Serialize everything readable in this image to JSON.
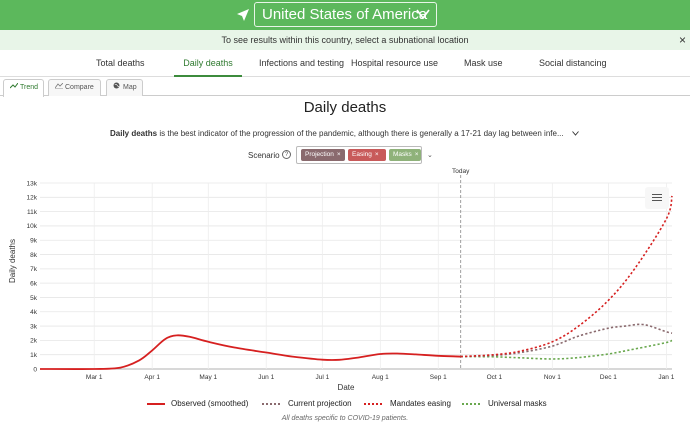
{
  "header": {
    "country": "United States of America",
    "location_icon": "location-arrow-icon",
    "chevron_icon": "chevron-down-icon"
  },
  "notice": {
    "text": "To see results within this country, select a subnational location",
    "close": "×"
  },
  "nav_tabs": [
    {
      "label": "Total deaths",
      "active": false
    },
    {
      "label": "Daily deaths",
      "active": true
    },
    {
      "label": "Infections and testing",
      "active": false
    },
    {
      "label": "Hospital resource use",
      "active": false
    },
    {
      "label": "Mask use",
      "active": false
    },
    {
      "label": "Social distancing",
      "active": false
    }
  ],
  "view_tabs": [
    {
      "label": "Trend",
      "icon": "trend-icon",
      "active": true
    },
    {
      "label": "Compare",
      "icon": "compare-icon",
      "active": false
    },
    {
      "label": "Map",
      "icon": "globe-icon",
      "active": false
    }
  ],
  "page_title": "Daily deaths",
  "description": {
    "bold": "Daily deaths",
    "rest": " is the best indicator of the progression of the pandemic, although there is generally a 17-21 day lag between infe..."
  },
  "scenario": {
    "label": "Scenario",
    "chips": [
      {
        "label": "Projection",
        "color": "#8a6a6e"
      },
      {
        "label": "Easing",
        "color": "#c85a5a"
      },
      {
        "label": "Masks",
        "color": "#8fb27a"
      }
    ]
  },
  "chart_data": {
    "type": "line",
    "xlabel": "Date",
    "ylabel": "Daily deaths",
    "ylim": [
      0,
      13000
    ],
    "yticks": [
      "0",
      "1k",
      "2k",
      "3k",
      "4k",
      "5k",
      "6k",
      "7k",
      "8k",
      "9k",
      "10k",
      "11k",
      "12k",
      "13k"
    ],
    "xticks": [
      "Mar 1",
      "Apr 1",
      "May 1",
      "Jun 1",
      "Jul 1",
      "Aug 1",
      "Sep 1",
      "Oct 1",
      "Nov 1",
      "Dec 1",
      "Jan 1"
    ],
    "today_label": "Today",
    "today_date": "2020-09-13",
    "grid": true,
    "series": [
      {
        "name": "Observed (smoothed)",
        "color": "#d62020",
        "style": "solid",
        "points": [
          [
            "2020-02-01",
            0
          ],
          [
            "2020-03-01",
            0
          ],
          [
            "2020-03-15",
            100
          ],
          [
            "2020-03-25",
            600
          ],
          [
            "2020-04-01",
            1300
          ],
          [
            "2020-04-08",
            2100
          ],
          [
            "2020-04-14",
            2350
          ],
          [
            "2020-04-21",
            2250
          ],
          [
            "2020-05-01",
            1900
          ],
          [
            "2020-05-15",
            1500
          ],
          [
            "2020-06-01",
            1150
          ],
          [
            "2020-06-15",
            870
          ],
          [
            "2020-07-01",
            650
          ],
          [
            "2020-07-10",
            640
          ],
          [
            "2020-07-20",
            800
          ],
          [
            "2020-08-01",
            1050
          ],
          [
            "2020-08-10",
            1080
          ],
          [
            "2020-08-20",
            1020
          ],
          [
            "2020-09-01",
            920
          ],
          [
            "2020-09-13",
            870
          ]
        ]
      },
      {
        "name": "Current projection",
        "color": "#8a6a6e",
        "style": "dotted",
        "points": [
          [
            "2020-09-13",
            870
          ],
          [
            "2020-10-01",
            950
          ],
          [
            "2020-10-15",
            1150
          ],
          [
            "2020-11-01",
            1600
          ],
          [
            "2020-11-15",
            2300
          ],
          [
            "2020-12-01",
            2850
          ],
          [
            "2020-12-10",
            3000
          ],
          [
            "2020-12-20",
            3100
          ],
          [
            "2021-01-01",
            2600
          ],
          [
            "2021-01-04",
            2500
          ]
        ]
      },
      {
        "name": "Mandates easing",
        "color": "#d62020",
        "style": "dotted",
        "points": [
          [
            "2020-09-13",
            870
          ],
          [
            "2020-10-01",
            1000
          ],
          [
            "2020-10-15",
            1250
          ],
          [
            "2020-11-01",
            1900
          ],
          [
            "2020-11-15",
            3000
          ],
          [
            "2020-12-01",
            4800
          ],
          [
            "2020-12-15",
            7000
          ],
          [
            "2021-01-01",
            10500
          ],
          [
            "2021-01-04",
            12100
          ]
        ]
      },
      {
        "name": "Universal masks",
        "color": "#6aa84f",
        "style": "dotted",
        "points": [
          [
            "2020-09-13",
            870
          ],
          [
            "2020-10-01",
            850
          ],
          [
            "2020-10-15",
            780
          ],
          [
            "2020-11-01",
            700
          ],
          [
            "2020-11-15",
            800
          ],
          [
            "2020-12-01",
            1050
          ],
          [
            "2020-12-15",
            1400
          ],
          [
            "2021-01-01",
            1850
          ],
          [
            "2021-01-04",
            2000
          ]
        ]
      }
    ]
  },
  "legend": [
    {
      "label": "Observed (smoothed)",
      "color": "#d62020",
      "style": "solid"
    },
    {
      "label": "Current projection",
      "color": "#8a6a6e",
      "style": "dotted"
    },
    {
      "label": "Mandates easing",
      "color": "#d62020",
      "style": "dotted"
    },
    {
      "label": "Universal masks",
      "color": "#6aa84f",
      "style": "dotted"
    }
  ],
  "footnote": "All deaths specific to COVID-19 patients.",
  "chart_menu_icon": "hamburger-menu-icon"
}
